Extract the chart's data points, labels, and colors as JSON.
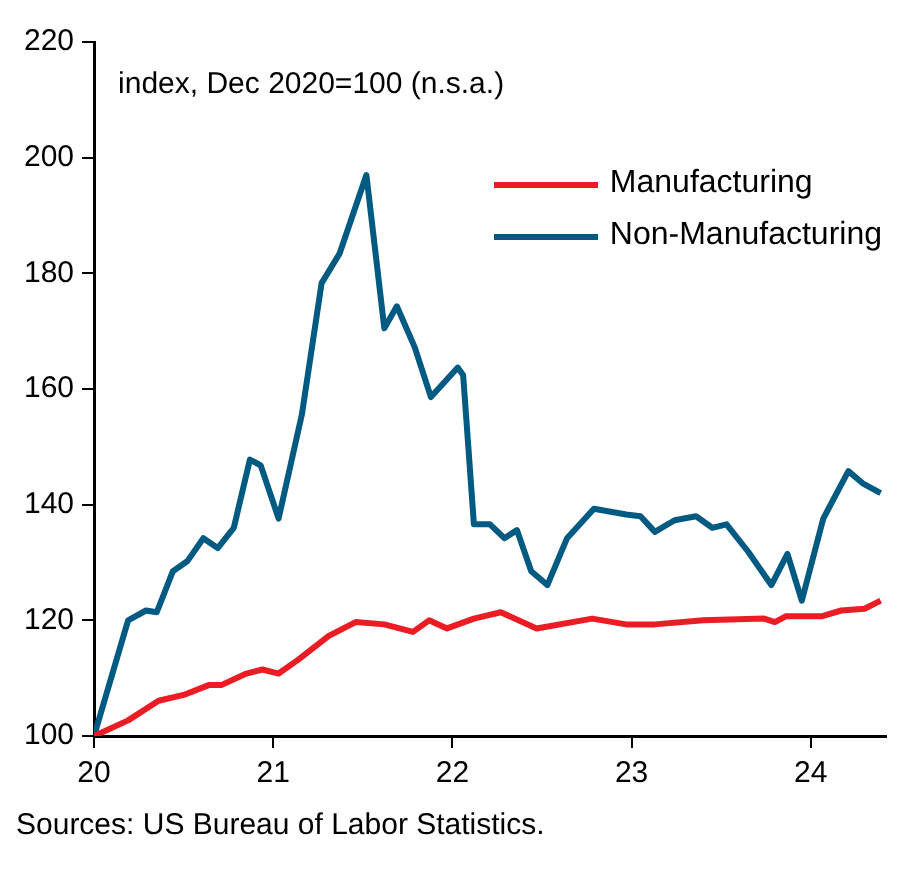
{
  "chart_data": {
    "type": "line",
    "annotations": [
      "index, Dec 2020=100 (n.s.a.)",
      "Sources: US Bureau of Labor Statistics."
    ],
    "xlim": [
      20,
      24.42
    ],
    "xticks": [
      20,
      21,
      22,
      23,
      24
    ],
    "ylim": [
      100,
      220
    ],
    "yticks": [
      100,
      120,
      140,
      160,
      180,
      200,
      220
    ],
    "grid": false,
    "legend": "top right",
    "marker": "none",
    "line_style": "solid",
    "series": [
      {
        "name": "Manufacturing",
        "color": "#ec1c24",
        "x": [
          20,
          20.19,
          20.36,
          20.5,
          20.64,
          20.71,
          20.85,
          20.94,
          21.03,
          21.14,
          21.31,
          21.46,
          21.62,
          21.78,
          21.87,
          21.97,
          22.12,
          22.27,
          22.47,
          22.78,
          22.97,
          23.13,
          23.4,
          23.74,
          23.8,
          23.86,
          24.06,
          24.17,
          24.3,
          24.39
        ],
        "values": [
          100,
          102.7,
          106.1,
          107.1,
          108.8,
          108.8,
          110.8,
          111.5,
          110.8,
          113.2,
          117.3,
          119.7,
          119.3,
          118,
          120,
          118.6,
          120.3,
          121.4,
          118.6,
          120.3,
          119.3,
          119.3,
          120,
          120.3,
          119.7,
          120.7,
          120.7,
          121.7,
          122,
          123.4
        ]
      },
      {
        "name": "Non-Manufacturing",
        "color": "#005a82",
        "x": [
          20,
          20.19,
          20.29,
          20.35,
          20.44,
          20.52,
          20.61,
          20.69,
          20.78,
          20.87,
          20.93,
          21.03,
          21.16,
          21.27,
          21.37,
          21.52,
          21.62,
          21.69,
          21.79,
          21.88,
          22.03,
          22.06,
          22.12,
          22.21,
          22.29,
          22.36,
          22.44,
          22.53,
          22.64,
          22.79,
          22.97,
          23.05,
          23.13,
          23.24,
          23.36,
          23.45,
          23.53,
          23.65,
          23.78,
          23.87,
          23.95,
          24.07,
          24.21,
          24.29,
          24.39
        ],
        "values": [
          100,
          120,
          121.7,
          121.4,
          128.5,
          130.2,
          134.2,
          132.5,
          136,
          147.8,
          146.8,
          137.6,
          155.6,
          178.3,
          183.4,
          197,
          170.5,
          174.3,
          167.2,
          158.6,
          163.7,
          162.4,
          136.6,
          136.6,
          134.2,
          135.6,
          128.5,
          126.1,
          134.2,
          139.3,
          138.3,
          138,
          135.3,
          137.3,
          138,
          136,
          136.6,
          131.9,
          126.1,
          131.5,
          123.4,
          137.6,
          145.8,
          143.7,
          142
        ]
      }
    ]
  }
}
